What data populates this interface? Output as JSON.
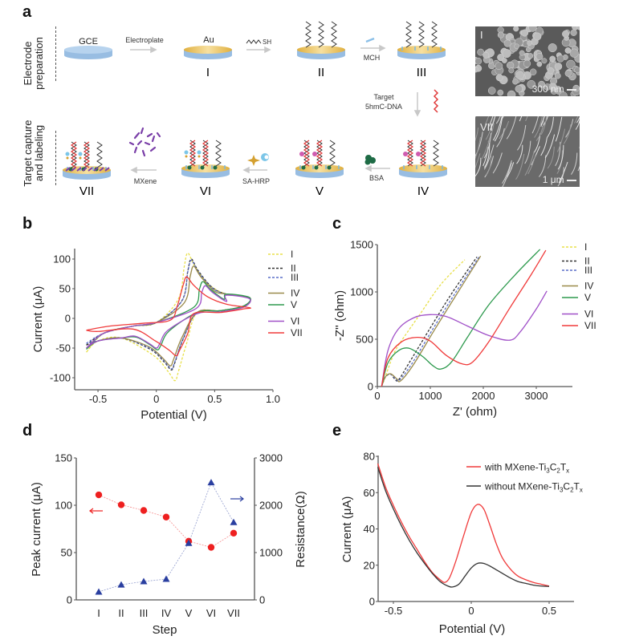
{
  "panel_labels": {
    "a": "a",
    "b": "b",
    "c": "c",
    "d": "d",
    "e": "e"
  },
  "schematic": {
    "row1_label": [
      "Electrode",
      "preparation"
    ],
    "row2_label": [
      "Target capture",
      "and labeling"
    ],
    "electrodes": [
      {
        "id": "GCE",
        "top_label": "GCE",
        "stage": ""
      },
      {
        "id": "I",
        "top_label": "Au",
        "stage": "I"
      },
      {
        "id": "II",
        "top_label": "",
        "stage": "II"
      },
      {
        "id": "III",
        "top_label": "",
        "stage": "III"
      },
      {
        "id": "IV",
        "top_label": "",
        "stage": "IV"
      },
      {
        "id": "V",
        "top_label": "",
        "stage": "V"
      },
      {
        "id": "VI",
        "top_label": "",
        "stage": "VI"
      },
      {
        "id": "VII",
        "top_label": "",
        "stage": "VII"
      }
    ],
    "steps": {
      "electroplate": "Electroplate",
      "sh_probe": "SH",
      "mch": "MCH",
      "target_line1": "Target",
      "target_line2": "5hmC-DNA",
      "bsa": "BSA",
      "sa_hrp": "SA-HRP",
      "mxene": "MXene"
    },
    "colors": {
      "electrode_base": "#a9c9e8",
      "gold": "#e8c060",
      "dna": "#333333",
      "target_dna": "#e03a3a",
      "bsa": "#1e6b45",
      "mxene": "#7a3fa8",
      "tag": "#d05bb0"
    }
  },
  "sem_images": [
    {
      "label": "I",
      "scale_bar": "300 nm"
    },
    {
      "label": "VII",
      "scale_bar": "1 μm"
    }
  ],
  "chart_data": [
    {
      "panel": "b",
      "type": "line",
      "title": "",
      "xlabel": "Potential (V)",
      "ylabel": "Current (μA)",
      "xlim": [
        -0.7,
        1.0
      ],
      "ylim": [
        -120,
        120
      ],
      "xticks": [
        "-0.5",
        "0",
        "0.5",
        "1.0"
      ],
      "xtick_values": [
        -0.5,
        0,
        0.5,
        1.0
      ],
      "yticks": [
        "-100",
        "-50",
        "0",
        "50",
        "100"
      ],
      "ytick_values": [
        -100,
        -50,
        0,
        50,
        100
      ],
      "legend_position": "right",
      "series": [
        {
          "name": "I",
          "color": "#e8e04a",
          "dashed": true,
          "anodic_peak": [
            0.27,
            110
          ],
          "cathodic_peak": [
            0.16,
            -105
          ],
          "start": [
            -0.6,
            -57
          ],
          "end": [
            0.8,
            35
          ]
        },
        {
          "name": "II",
          "color": "#333333",
          "dashed": true,
          "anodic_peak": [
            0.3,
            100
          ],
          "cathodic_peak": [
            0.13,
            -87
          ],
          "start": [
            -0.6,
            -45
          ],
          "end": [
            0.8,
            35
          ]
        },
        {
          "name": "III",
          "color": "#5a6ec8",
          "dashed": true,
          "anodic_peak": [
            0.3,
            98
          ],
          "cathodic_peak": [
            0.13,
            -85
          ],
          "start": [
            -0.6,
            -42
          ],
          "end": [
            0.8,
            35
          ]
        },
        {
          "name": "IV",
          "color": "#9a8a4a",
          "dashed": false,
          "anodic_peak": [
            0.32,
            88
          ],
          "cathodic_peak": [
            0.12,
            -80
          ],
          "start": [
            -0.6,
            -50
          ],
          "end": [
            0.8,
            35
          ]
        },
        {
          "name": "V",
          "color": "#2e9a4e",
          "dashed": false,
          "anodic_peak": [
            0.4,
            62
          ],
          "cathodic_peak": [
            0.01,
            -53
          ],
          "start": [
            -0.6,
            -52
          ],
          "end": [
            0.8,
            35
          ]
        },
        {
          "name": "VI",
          "color": "#a050c8",
          "dashed": false,
          "anodic_peak": [
            0.42,
            55
          ],
          "cathodic_peak": [
            0.0,
            -50
          ],
          "start": [
            -0.6,
            -50
          ],
          "end": [
            0.8,
            33
          ]
        },
        {
          "name": "VII",
          "color": "#f03a3a",
          "dashed": false,
          "anodic_peak": [
            0.26,
            70
          ],
          "cathodic_peak": [
            0.17,
            -63
          ],
          "start": [
            -0.6,
            -20
          ],
          "end": [
            0.8,
            18
          ]
        }
      ]
    },
    {
      "panel": "c",
      "type": "line",
      "title": "",
      "xlabel": "Z' (ohm)",
      "ylabel": "-Z'' (ohm)",
      "xlim": [
        0,
        3700
      ],
      "ylim": [
        0,
        1500
      ],
      "xticks": [
        "0",
        "1000",
        "2000",
        "3000"
      ],
      "xtick_values": [
        0,
        1000,
        2000,
        3000
      ],
      "yticks": [
        "0",
        "500",
        "1000",
        "1500"
      ],
      "ytick_values": [
        0,
        500,
        1000,
        1500
      ],
      "legend_position": "right",
      "series": [
        {
          "name": "I",
          "color": "#e8e04a",
          "dashed": true,
          "x": [
            80,
            150,
            250,
            350,
            500,
            800,
            1200,
            1650
          ],
          "y": [
            0,
            100,
            260,
            390,
            520,
            760,
            1080,
            1340
          ]
        },
        {
          "name": "II",
          "color": "#333333",
          "dashed": true,
          "x": [
            80,
            150,
            250,
            330,
            400,
            600,
            1000,
            1400,
            1880
          ],
          "y": [
            0,
            100,
            130,
            80,
            70,
            250,
            620,
            980,
            1370
          ]
        },
        {
          "name": "III",
          "color": "#5a6ec8",
          "dashed": true,
          "x": [
            80,
            150,
            250,
            350,
            420,
            650,
            1050,
            1450,
            1920
          ],
          "y": [
            0,
            100,
            130,
            80,
            70,
            240,
            610,
            970,
            1370
          ]
        },
        {
          "name": "IV",
          "color": "#9a8a4a",
          "dashed": false,
          "x": [
            80,
            150,
            250,
            370,
            440,
            680,
            1080,
            1480,
            1950
          ],
          "y": [
            0,
            100,
            135,
            80,
            60,
            230,
            600,
            960,
            1380
          ]
        },
        {
          "name": "V",
          "color": "#2e9a4e",
          "dashed": false,
          "x": [
            80,
            200,
            400,
            600,
            850,
            1050,
            1200,
            1400,
            1700,
            2100,
            2600,
            3070
          ],
          "y": [
            0,
            250,
            380,
            405,
            320,
            220,
            185,
            260,
            520,
            860,
            1180,
            1450
          ]
        },
        {
          "name": "VI",
          "color": "#a050c8",
          "dashed": false,
          "x": [
            80,
            200,
            400,
            700,
            1000,
            1300,
            1700,
            2100,
            2500,
            2700,
            3000,
            3200
          ],
          "y": [
            0,
            380,
            610,
            730,
            760,
            740,
            640,
            540,
            490,
            580,
            820,
            1010
          ]
        },
        {
          "name": "VII",
          "color": "#f03a3a",
          "dashed": false,
          "x": [
            80,
            200,
            450,
            750,
            1000,
            1300,
            1600,
            1800,
            2100,
            2500,
            2900,
            3180
          ],
          "y": [
            0,
            300,
            470,
            520,
            480,
            330,
            240,
            260,
            470,
            830,
            1180,
            1440
          ]
        }
      ]
    },
    {
      "panel": "d",
      "type": "line",
      "title": "",
      "xlabel": "Step",
      "ylabel": "Peak current (μA)",
      "ylabel_right": "Resistance(Ω)",
      "categories": [
        "I",
        "II",
        "III",
        "IV",
        "V",
        "VI",
        "VII"
      ],
      "ylim": [
        0,
        150
      ],
      "ylim_right": [
        0,
        3000
      ],
      "yticks": [
        "0",
        "50",
        "100",
        "150"
      ],
      "ytick_values": [
        0,
        50,
        100,
        150
      ],
      "yticks_right": [
        "0",
        "1000",
        "2000",
        "3000"
      ],
      "ytick_values_right": [
        0,
        1000,
        2000,
        3000
      ],
      "series": [
        {
          "name": "Peak current",
          "axis": "left",
          "marker": "circle",
          "color": "#ee2020",
          "values": [
            111,
            100.5,
            94.5,
            87.5,
            62,
            55.5,
            70.5
          ]
        },
        {
          "name": "Resistance",
          "axis": "right",
          "marker": "triangle",
          "color": "#2a3fa0",
          "values": [
            170,
            320,
            390,
            440,
            1200,
            2480,
            1640
          ]
        }
      ],
      "annotations": [
        {
          "text": "←",
          "color": "#ee2020",
          "refers_to": "left axis"
        },
        {
          "text": "→",
          "color": "#2a3fa0",
          "refers_to": "right axis"
        }
      ]
    },
    {
      "panel": "e",
      "type": "line",
      "title": "",
      "xlabel": "Potential (V)",
      "ylabel": "Current (μA)",
      "xlim": [
        -0.6,
        0.65
      ],
      "ylim": [
        0,
        80
      ],
      "xticks": [
        "-0.5",
        "0",
        "0.5"
      ],
      "xtick_values": [
        -0.5,
        0,
        0.5
      ],
      "yticks": [
        "0",
        "20",
        "40",
        "60",
        "80"
      ],
      "ytick_values": [
        0,
        20,
        40,
        60,
        80
      ],
      "legend_position": "top-right",
      "series": [
        {
          "name": "with MXene-Ti3C2Tx",
          "legend_main": "with MXene-Ti",
          "color": "#f03a3a",
          "x": [
            -0.6,
            -0.55,
            -0.5,
            -0.45,
            -0.4,
            -0.35,
            -0.3,
            -0.25,
            -0.2,
            -0.17,
            -0.14,
            -0.1,
            -0.05,
            0.0,
            0.04,
            0.08,
            0.12,
            0.16,
            0.2,
            0.25,
            0.3,
            0.35,
            0.4,
            0.45,
            0.5
          ],
          "y": [
            76,
            63,
            53,
            44,
            36,
            29,
            22,
            16,
            12,
            10.5,
            13,
            22,
            36,
            49,
            53.5,
            51,
            42,
            32,
            24,
            18,
            14,
            12,
            10.5,
            9.5,
            8.5
          ]
        },
        {
          "name": "without MXene-Ti3C2Tx",
          "legend_main": "without MXene-Ti",
          "color": "#333333",
          "x": [
            -0.6,
            -0.55,
            -0.5,
            -0.45,
            -0.4,
            -0.35,
            -0.3,
            -0.25,
            -0.2,
            -0.15,
            -0.12,
            -0.08,
            -0.04,
            0.0,
            0.04,
            0.08,
            0.12,
            0.16,
            0.2,
            0.25,
            0.3,
            0.35,
            0.4,
            0.45,
            0.5
          ],
          "y": [
            74,
            61,
            51,
            42,
            34,
            27,
            21,
            15.5,
            11,
            8.5,
            8,
            9.5,
            14,
            18.5,
            21,
            21,
            19.5,
            17.5,
            15.5,
            13,
            11,
            10,
            9,
            8.5,
            8.3
          ]
        }
      ]
    }
  ]
}
